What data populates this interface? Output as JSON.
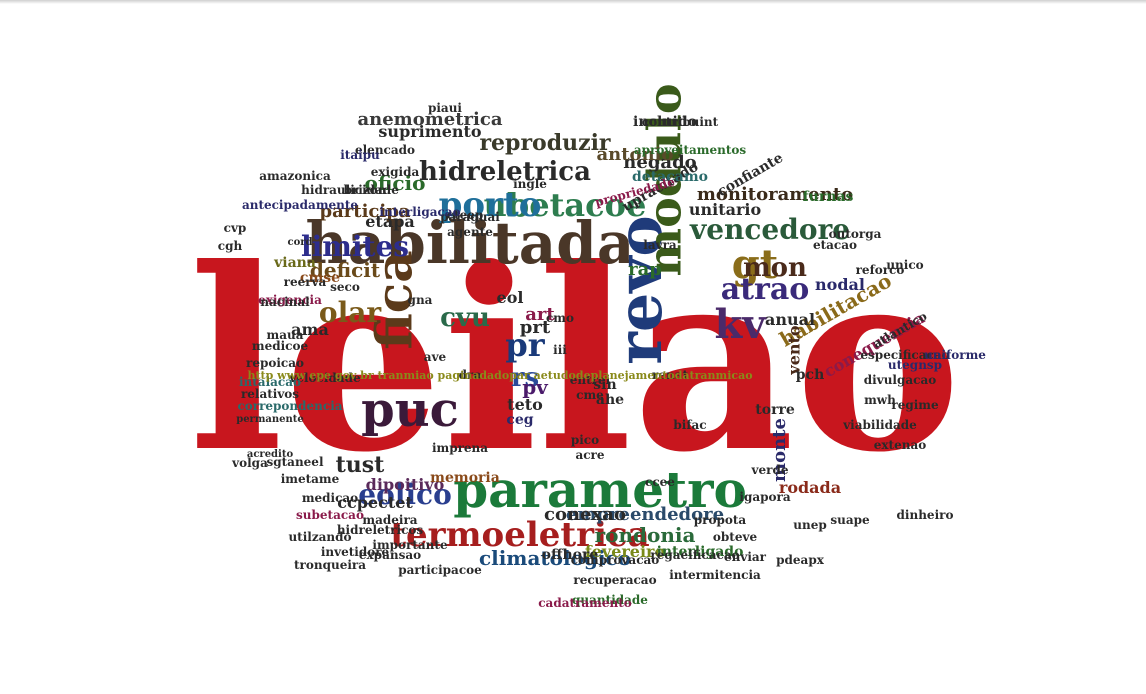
{
  "cloud": {
    "words": [
      {
        "text": "leilao",
        "color": "#c8161e",
        "size": 250,
        "rot": 0
      },
      {
        "text": "habilitada",
        "color": "#4a3728",
        "size": 58,
        "rot": 0
      },
      {
        "text": "parametro",
        "color": "#1b7a3a",
        "size": 50,
        "rot": 0
      },
      {
        "text": "revo",
        "color": "#1f3b7a",
        "size": 62,
        "rot": -90
      },
      {
        "text": "fica",
        "color": "#5b3a1a",
        "size": 50,
        "rot": -90
      },
      {
        "text": "puc",
        "color": "#3b1a3a",
        "size": 48,
        "rot": 0
      },
      {
        "text": "modulo",
        "color": "#3a5a1a",
        "size": 46,
        "rot": -90
      },
      {
        "text": "termoeletrica",
        "color": "#a61e1e",
        "size": 34,
        "rot": 0
      },
      {
        "text": "ubetacoe",
        "color": "#2e7d4f",
        "size": 32,
        "rot": 0
      },
      {
        "text": "porto",
        "color": "#1f6f9a",
        "size": 34,
        "rot": 0
      },
      {
        "text": "limites",
        "color": "#2d2d8c",
        "size": 28,
        "rot": 0
      },
      {
        "text": "eolico",
        "color": "#2a3f8f",
        "size": 28,
        "rot": 0
      },
      {
        "text": "gt",
        "color": "#8a6d1a",
        "size": 40,
        "rot": 0
      },
      {
        "text": "kv",
        "color": "#4a2a6a",
        "size": 40,
        "rot": 0
      },
      {
        "text": "atrao",
        "color": "#3a2a7a",
        "size": 30,
        "rot": 0
      },
      {
        "text": "vencedore",
        "color": "#2a5a3a",
        "size": 28,
        "rot": 0
      },
      {
        "text": "hidreletrica",
        "color": "#2a2a2a",
        "size": 26,
        "rot": 0
      },
      {
        "text": "reproduzir",
        "color": "#3a3a2a",
        "size": 22,
        "rot": 0
      },
      {
        "text": "olar",
        "color": "#7a5a1a",
        "size": 28,
        "rot": 0
      },
      {
        "text": "cvu",
        "color": "#2a6a4a",
        "size": 26,
        "rot": 0
      },
      {
        "text": "pr",
        "color": "#1a3a7a",
        "size": 32,
        "rot": 0
      },
      {
        "text": "rs",
        "color": "#2a4a9a",
        "size": 26,
        "rot": 0
      },
      {
        "text": "mon",
        "color": "#4a2a1a",
        "size": 26,
        "rot": 0
      },
      {
        "text": "tust",
        "color": "#2a2a2a",
        "size": 22,
        "rot": 0
      },
      {
        "text": "deficit",
        "color": "#6a4a1a",
        "size": 20,
        "rot": 0
      },
      {
        "text": "monitoramento",
        "color": "#3a2a1a",
        "size": 18,
        "rot": 0
      },
      {
        "text": "empreendedore",
        "color": "#2a4a6a",
        "size": 18,
        "rot": 0
      },
      {
        "text": "rondonia",
        "color": "#2a6a3a",
        "size": 20,
        "rot": 0
      },
      {
        "text": "climatologico",
        "color": "#1a4a7a",
        "size": 20,
        "rot": 0
      },
      {
        "text": "conexao",
        "color": "#2a2a2a",
        "size": 18,
        "rot": 0
      },
      {
        "text": "anemometrica",
        "color": "#3a3a3a",
        "size": 18,
        "rot": 0
      },
      {
        "text": "suprimento",
        "color": "#2a2a2a",
        "size": 16,
        "rot": 0
      },
      {
        "text": "negado",
        "color": "#2a2a2a",
        "size": 18,
        "rot": 0
      },
      {
        "text": "participa",
        "color": "#5a3a1a",
        "size": 18,
        "rot": 0
      },
      {
        "text": "oficio",
        "color": "#2a6a2a",
        "size": 20,
        "rot": 0
      },
      {
        "text": "etapa",
        "color": "#2a2a2a",
        "size": 16,
        "rot": 0
      },
      {
        "text": "antonio",
        "color": "#5a4a2a",
        "size": 18,
        "rot": 0
      },
      {
        "text": "habilitacao",
        "color": "#8a6a1a",
        "size": 20,
        "rot": -30
      },
      {
        "text": "monte",
        "color": "#2a2a6a",
        "size": 18,
        "rot": -90
      },
      {
        "text": "rodada",
        "color": "#8a2a1a",
        "size": 16,
        "rot": 0
      },
      {
        "text": "dipoitivo",
        "color": "#5a2a5a",
        "size": 16,
        "rot": 0
      },
      {
        "text": "ccpectet",
        "color": "#2a2a2a",
        "size": 16,
        "rot": 0
      },
      {
        "text": "fevereiro",
        "color": "#7a8a1a",
        "size": 16,
        "rot": 0
      },
      {
        "text": "interligado",
        "color": "#2a6a2a",
        "size": 14,
        "rot": 0
      },
      {
        "text": "offhore",
        "color": "#2a2a2a",
        "size": 14,
        "rot": 0
      },
      {
        "text": "anual",
        "color": "#2a2a2a",
        "size": 16,
        "rot": 0
      },
      {
        "text": "vento",
        "color": "#4a2a1a",
        "size": 16,
        "rot": -90
      },
      {
        "text": "art",
        "color": "#8a1a4a",
        "size": 18,
        "rot": 0
      },
      {
        "text": "prt",
        "color": "#2a2a2a",
        "size": 18,
        "rot": 0
      },
      {
        "text": "pv",
        "color": "#4a1a6a",
        "size": 20,
        "rot": 0
      },
      {
        "text": "eol",
        "color": "#2a2a2a",
        "size": 16,
        "rot": 0
      },
      {
        "text": "rap",
        "color": "#2a6a2a",
        "size": 18,
        "rot": 0
      },
      {
        "text": "ama",
        "color": "#2a2a2a",
        "size": 16,
        "rot": 0
      },
      {
        "text": "conequencia",
        "color": "#8a1a4a",
        "size": 16,
        "rot": -30
      },
      {
        "text": "nodal",
        "color": "#2a2a6a",
        "size": 16,
        "rot": 0
      },
      {
        "text": "confiante",
        "color": "#2a2a2a",
        "size": 14,
        "rot": -30
      },
      {
        "text": "unitario",
        "color": "#2a2a2a",
        "size": 16,
        "rot": 0
      },
      {
        "text": "upracitado",
        "color": "#2a2a2a",
        "size": 14,
        "rot": -30
      },
      {
        "text": "incluido",
        "color": "#2a2a2a",
        "size": 14,
        "rot": 0
      },
      {
        "text": "detacamo",
        "color": "#2a6a6a",
        "size": 14,
        "rot": 0
      },
      {
        "text": "memoria",
        "color": "#8a4a1a",
        "size": 14,
        "rot": 0
      },
      {
        "text": "teto",
        "color": "#2a2a2a",
        "size": 16,
        "rot": 0
      },
      {
        "text": "ceg",
        "color": "#2a2a6a",
        "size": 14,
        "rot": 0
      },
      {
        "text": "pch",
        "color": "#2a2a2a",
        "size": 14,
        "rot": 0
      },
      {
        "text": "torre",
        "color": "#2a2a2a",
        "size": 14,
        "rot": 0
      },
      {
        "text": "viana",
        "color": "#6a6a1a",
        "size": 14,
        "rot": 0
      },
      {
        "text": "cmse",
        "color": "#8a4a1a",
        "size": 14,
        "rot": 0
      },
      {
        "text": "furnas",
        "color": "#2a6a2a",
        "size": 14,
        "rot": 0
      },
      {
        "text": "outorga",
        "color": "#2a2a2a",
        "size": 12,
        "rot": 0
      },
      {
        "text": "velocidade",
        "color": "#2a2a2a",
        "size": 12,
        "rot": 0
      },
      {
        "text": "atlantico",
        "color": "#2a2a2a",
        "size": 12,
        "rot": -30
      },
      {
        "text": "regaeificacao",
        "color": "#2a2a2a",
        "size": 12,
        "rot": 0
      },
      {
        "text": "intermitencia",
        "color": "#2a2a2a",
        "size": 12,
        "rot": 0
      },
      {
        "text": "comprovacao",
        "color": "#2a2a2a",
        "size": 12,
        "rot": 0
      },
      {
        "text": "recuperacao",
        "color": "#2a2a2a",
        "size": 12,
        "rot": 0
      },
      {
        "text": "quantidade",
        "color": "#2a6a2a",
        "size": 12,
        "rot": 0
      },
      {
        "text": "cadatramento",
        "color": "#8a1a4a",
        "size": 12,
        "rot": 0
      },
      {
        "text": "sgtaneel",
        "color": "#2a2a2a",
        "size": 12,
        "rot": 0
      },
      {
        "text": "imetame",
        "color": "#2a2a2a",
        "size": 12,
        "rot": 0
      },
      {
        "text": "invetidore",
        "color": "#2a2a2a",
        "size": 12,
        "rot": 0
      },
      {
        "text": "tronqueira",
        "color": "#2a2a2a",
        "size": 12,
        "rot": 0
      },
      {
        "text": "participacoe",
        "color": "#2a2a2a",
        "size": 12,
        "rot": 0
      },
      {
        "text": "expansao",
        "color": "#2a2a2a",
        "size": 12,
        "rot": 0
      },
      {
        "text": "ccee",
        "color": "#2a2a2a",
        "size": 12,
        "rot": 0
      },
      {
        "text": "bifac",
        "color": "#2a2a2a",
        "size": 12,
        "rot": 0
      },
      {
        "text": "medicao",
        "color": "#2a2a2a",
        "size": 12,
        "rot": 0
      },
      {
        "text": "importante",
        "color": "#2a2a2a",
        "size": 12,
        "rot": 0
      },
      {
        "text": "utilzando",
        "color": "#2a2a2a",
        "size": 12,
        "rot": 0
      },
      {
        "text": "subetacao",
        "color": "#8a1a4a",
        "size": 12,
        "rot": 0
      },
      {
        "text": "acredito",
        "color": "#2a2a2a",
        "size": 10,
        "rot": 0
      },
      {
        "text": "reerva",
        "color": "#2a2a2a",
        "size": 12,
        "rot": 0
      },
      {
        "text": "seco",
        "color": "#2a2a2a",
        "size": 12,
        "rot": 0
      },
      {
        "text": "gna",
        "color": "#2a2a2a",
        "size": 12,
        "rot": 0
      },
      {
        "text": "cmo",
        "color": "#2a2a2a",
        "size": 12,
        "rot": 0
      },
      {
        "text": "sin",
        "color": "#2a2a2a",
        "size": 14,
        "rot": 0
      },
      {
        "text": "ahe",
        "color": "#2a2a2a",
        "size": 14,
        "rot": 0
      },
      {
        "text": "iii",
        "color": "#2a2a2a",
        "size": 12,
        "rot": 0
      },
      {
        "text": "pico",
        "color": "#2a2a2a",
        "size": 12,
        "rot": 0
      },
      {
        "text": "acre",
        "color": "#2a2a2a",
        "size": 12,
        "rot": 0
      },
      {
        "text": "imprena",
        "color": "#2a2a2a",
        "size": 12,
        "rot": 0
      },
      {
        "text": "agente",
        "color": "#2a2a2a",
        "size": 12,
        "rot": 0
      },
      {
        "text": "cteep",
        "color": "#2a2a2a",
        "size": 12,
        "rot": 0
      },
      {
        "text": "lavra",
        "color": "#2a2a2a",
        "size": 12,
        "rot": 0
      },
      {
        "text": "etacao",
        "color": "#2a2a2a",
        "size": 12,
        "rot": 0
      },
      {
        "text": "cord",
        "color": "#2a2a2a",
        "size": 10,
        "rot": 0
      },
      {
        "text": "paraguai",
        "color": "#2a2a2a",
        "size": 12,
        "rot": 0
      },
      {
        "text": "antecipadamente",
        "color": "#2a2a6a",
        "size": 12,
        "rot": 0
      },
      {
        "text": "hidraulicidade",
        "color": "#2a2a2a",
        "size": 12,
        "rot": 0
      },
      {
        "text": "interligacao",
        "color": "#2a2a6a",
        "size": 12,
        "rot": 0
      },
      {
        "text": "aproveitamentos",
        "color": "#2a6a2a",
        "size": 12,
        "rot": 0
      },
      {
        "text": "contribuint",
        "color": "#2a2a2a",
        "size": 12,
        "rot": 0
      },
      {
        "text": "piaui",
        "color": "#2a2a2a",
        "size": 12,
        "rot": 0
      },
      {
        "text": "brizon",
        "color": "#2a2a2a",
        "size": 12,
        "rot": 0
      },
      {
        "text": "exigida",
        "color": "#2a2a2a",
        "size": 12,
        "rot": 0
      },
      {
        "text": "ingle",
        "color": "#2a2a2a",
        "size": 12,
        "rot": 0
      },
      {
        "text": "propriedade",
        "color": "#8a1a4a",
        "size": 12,
        "rot": -15
      },
      {
        "text": "elencado",
        "color": "#2a2a2a",
        "size": 12,
        "rot": 0
      },
      {
        "text": "amazonica",
        "color": "#2a2a2a",
        "size": 12,
        "rot": 0
      },
      {
        "text": "itaipu",
        "color": "#2a2a6a",
        "size": 12,
        "rot": 0
      },
      {
        "text": "suape",
        "color": "#2a2a2a",
        "size": 12,
        "rot": 0
      },
      {
        "text": "enviar",
        "color": "#2a2a2a",
        "size": 12,
        "rot": 0
      },
      {
        "text": "pdeapx",
        "color": "#2a2a2a",
        "size": 12,
        "rot": 0
      },
      {
        "text": "unep",
        "color": "#2a2a2a",
        "size": 12,
        "rot": 0
      },
      {
        "text": "igapora",
        "color": "#2a2a2a",
        "size": 12,
        "rot": 0
      },
      {
        "text": "obteve",
        "color": "#2a2a2a",
        "size": 12,
        "rot": 0
      },
      {
        "text": "propota",
        "color": "#2a2a2a",
        "size": 12,
        "rot": 0
      },
      {
        "text": "hidreletricos",
        "color": "#2a2a2a",
        "size": 12,
        "rot": 0
      },
      {
        "text": "madeira",
        "color": "#2a2a2a",
        "size": 12,
        "rot": 0
      },
      {
        "text": "dinheiro",
        "color": "#2a2a2a",
        "size": 12,
        "rot": 0
      },
      {
        "text": "extenao",
        "color": "#2a2a2a",
        "size": 12,
        "rot": 0
      },
      {
        "text": "divulgacao",
        "color": "#2a2a2a",
        "size": 12,
        "rot": 0
      },
      {
        "text": "utegnsp",
        "color": "#2a2a6a",
        "size": 12,
        "rot": 0
      },
      {
        "text": "especificacao",
        "color": "#2a2a2a",
        "size": 12,
        "rot": 0
      },
      {
        "text": "uniforme",
        "color": "#2a2a6a",
        "size": 12,
        "rot": 0
      },
      {
        "text": "unico",
        "color": "#2a2a2a",
        "size": 12,
        "rot": 0
      },
      {
        "text": "reforco",
        "color": "#2a2a2a",
        "size": 12,
        "rot": 0
      },
      {
        "text": "mwh",
        "color": "#2a2a2a",
        "size": 12,
        "rot": 0
      },
      {
        "text": "verde",
        "color": "#2a2a2a",
        "size": 12,
        "rot": 0
      },
      {
        "text": "viabilidade",
        "color": "#2a2a2a",
        "size": 12,
        "rot": 0
      },
      {
        "text": "regime",
        "color": "#2a2a2a",
        "size": 12,
        "rot": 0
      },
      {
        "text": "repoicao",
        "color": "#2a2a2a",
        "size": 12,
        "rot": 0
      },
      {
        "text": "medicoe",
        "color": "#2a2a2a",
        "size": 12,
        "rot": 0
      },
      {
        "text": "intalacao",
        "color": "#2a6a6a",
        "size": 12,
        "rot": 0
      },
      {
        "text": "relativos",
        "color": "#2a2a2a",
        "size": 12,
        "rot": 0
      },
      {
        "text": "correpondencia",
        "color": "#2a6a6a",
        "size": 12,
        "rot": 0
      },
      {
        "text": "permanente",
        "color": "#2a2a2a",
        "size": 10,
        "rot": 0
      },
      {
        "text": "volga",
        "color": "#2a2a2a",
        "size": 12,
        "rot": 0
      },
      {
        "text": "maua",
        "color": "#2a2a2a",
        "size": 12,
        "rot": 0
      },
      {
        "text": "exigencia",
        "color": "#8a1a4a",
        "size": 12,
        "rot": 0
      },
      {
        "text": "nacinal",
        "color": "#2a2a2a",
        "size": 12,
        "rot": 0
      },
      {
        "text": "cgh",
        "color": "#2a2a2a",
        "size": 12,
        "rot": 0
      },
      {
        "text": "cvp",
        "color": "#2a2a2a",
        "size": 12,
        "rot": 0
      },
      {
        "text": "cme",
        "color": "#2a2a2a",
        "size": 12,
        "rot": 0
      },
      {
        "text": "entrei",
        "color": "#2a2a2a",
        "size": 12,
        "rot": 0
      },
      {
        "text": "renat",
        "color": "#2a2a2a",
        "size": 12,
        "rot": 0
      },
      {
        "text": "ave",
        "color": "#2a2a2a",
        "size": 12,
        "rot": 0
      },
      {
        "text": "dro",
        "color": "#2a2a2a",
        "size": 12,
        "rot": 0
      },
      {
        "text": "http www epe gov br tranmiao paginadadopar aetudodeplanejamentodatranmicao",
        "color": "#8a8a1a",
        "size": 11,
        "rot": 0
      }
    ]
  }
}
